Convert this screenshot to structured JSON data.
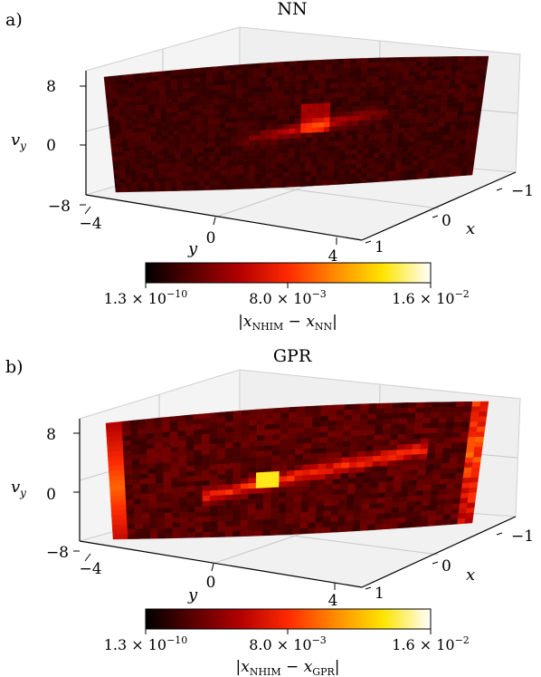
{
  "chart_data": [
    {
      "type": "surface3d",
      "panel_label": "a)",
      "title": "NN",
      "axes": {
        "x": {
          "label": "x",
          "ticks": [
            "−1",
            "0",
            "1"
          ]
        },
        "y": {
          "label": "y",
          "ticks": [
            "−4",
            "0",
            "4"
          ]
        },
        "vy": {
          "label": "v",
          "label_sub": "y",
          "ticks": [
            "8",
            "0",
            "−8"
          ]
        }
      },
      "colorbar": {
        "colormap": "hot",
        "colors": [
          "#000000",
          "#5a0000",
          "#b40000",
          "#ff2a00",
          "#ff8c00",
          "#ffe400",
          "#ffffff"
        ],
        "ticks": [
          {
            "base": "1.3 × 10",
            "exp": "−10"
          },
          {
            "base": "8.0 × 10",
            "exp": "−3"
          },
          {
            "base": "1.6 × 10",
            "exp": "−2"
          }
        ],
        "label_parts": [
          "|x",
          "NHIM",
          " − x",
          "NN",
          "|"
        ],
        "range": [
          1.3e-10,
          0.016
        ]
      }
    },
    {
      "type": "surface3d",
      "panel_label": "b)",
      "title": "GPR",
      "axes": {
        "x": {
          "label": "x",
          "ticks": [
            "−1",
            "0",
            "1"
          ]
        },
        "y": {
          "label": "y",
          "ticks": [
            "−4",
            "0",
            "4"
          ]
        },
        "vy": {
          "label": "v",
          "label_sub": "y",
          "ticks": [
            "8",
            "0",
            "−8"
          ]
        }
      },
      "colorbar": {
        "colormap": "hot",
        "colors": [
          "#000000",
          "#5a0000",
          "#b40000",
          "#ff2a00",
          "#ff8c00",
          "#ffe400",
          "#ffffff"
        ],
        "ticks": [
          {
            "base": "1.3 × 10",
            "exp": "−10"
          },
          {
            "base": "8.0 × 10",
            "exp": "−3"
          },
          {
            "base": "1.6 × 10",
            "exp": "−2"
          }
        ],
        "label_parts": [
          "|x",
          "NHIM",
          " − x",
          "GPR",
          "|"
        ],
        "range": [
          1.3e-10,
          0.016
        ]
      }
    }
  ]
}
